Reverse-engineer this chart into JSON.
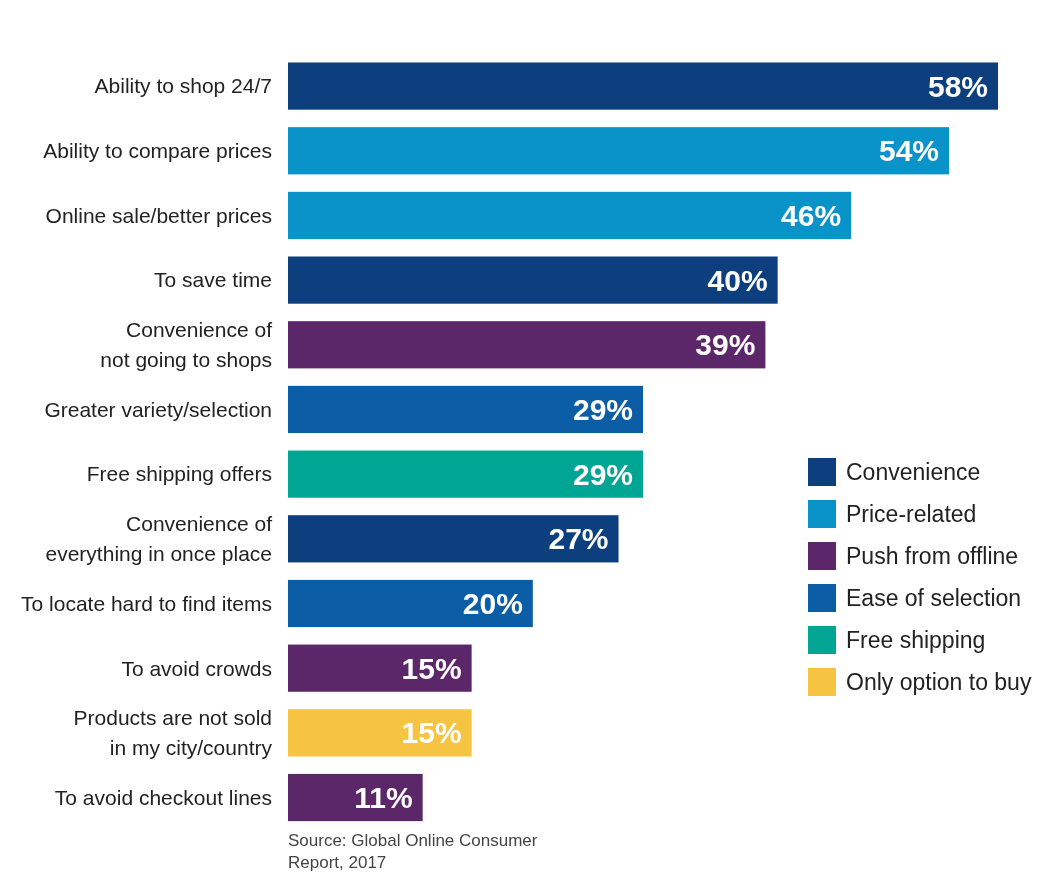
{
  "chart_data": {
    "type": "bar",
    "orientation": "horizontal",
    "categories": [
      "Ability to shop 24/7",
      "Ability to compare prices",
      "Online sale/better prices",
      "To save time",
      "Convenience of not going to shops",
      "Greater variety/selection",
      "Free shipping offers",
      "Convenience of everything in once place",
      "To locate hard to find items",
      "To avoid crowds",
      "Products are not sold in my city/country",
      "To avoid checkout lines"
    ],
    "series": [
      {
        "name": "Convenience",
        "color": "#0d3f7e",
        "values": [
          58,
          null,
          null,
          40,
          null,
          null,
          null,
          27,
          null,
          null,
          null,
          null
        ],
        "value_labels": [
          "58%",
          null,
          null,
          "40%",
          null,
          null,
          null,
          "27%",
          null,
          null,
          null,
          null
        ]
      },
      {
        "name": "Price-related",
        "color": "#0a93c9",
        "values": [
          null,
          54,
          46,
          null,
          null,
          null,
          null,
          null,
          null,
          null,
          null,
          null
        ],
        "value_labels": [
          null,
          "54%",
          "46%",
          null,
          null,
          null,
          null,
          null,
          null,
          null,
          null,
          null
        ]
      },
      {
        "name": "Push from offline",
        "color": "#5c2769",
        "values": [
          null,
          null,
          null,
          null,
          39,
          null,
          null,
          null,
          null,
          15,
          null,
          11
        ],
        "value_labels": [
          null,
          null,
          null,
          null,
          "39%",
          null,
          null,
          null,
          null,
          "15%",
          null,
          "11%"
        ]
      },
      {
        "name": "Ease of selection",
        "color": "#0b5ea5",
        "values": [
          null,
          null,
          null,
          null,
          null,
          29,
          null,
          null,
          20,
          null,
          null,
          null
        ],
        "value_labels": [
          null,
          null,
          null,
          null,
          null,
          "29%",
          null,
          null,
          "20%",
          null,
          null,
          null
        ]
      },
      {
        "name": "Free shipping",
        "color": "#00a593",
        "values": [
          null,
          null,
          null,
          null,
          null,
          null,
          29,
          null,
          null,
          null,
          null,
          null
        ],
        "value_labels": [
          null,
          null,
          null,
          null,
          null,
          null,
          "29%",
          null,
          null,
          null,
          null,
          null
        ]
      },
      {
        "name": "Only option to buy",
        "color": "#f6c440",
        "values": [
          null,
          null,
          null,
          null,
          null,
          null,
          null,
          null,
          null,
          null,
          15,
          null
        ],
        "value_labels": [
          null,
          null,
          null,
          null,
          null,
          null,
          null,
          null,
          null,
          null,
          "15%",
          null
        ]
      }
    ],
    "legend": "right",
    "annotations": [
      "Source: Global Online Consumer Report, 2017"
    ]
  }
}
